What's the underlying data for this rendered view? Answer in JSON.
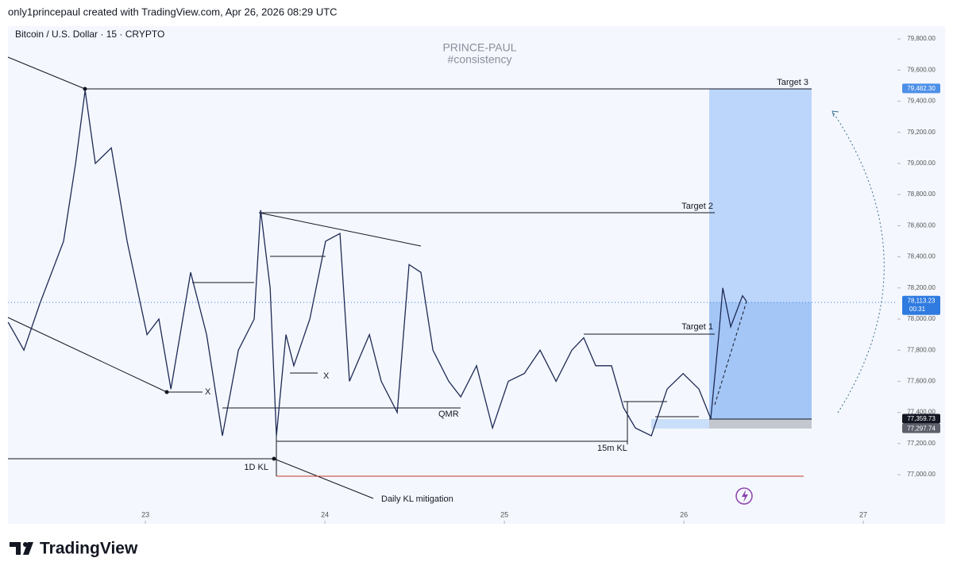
{
  "header": {
    "text": "only1princepaul created with TradingView.com, Apr 26, 2026 08:29 UTC"
  },
  "chart_data": {
    "type": "line",
    "title": "Bitcoin / U.S. Dollar · 15 · CRYPTO",
    "watermark": [
      "PRINCE-PAUL",
      "#consistency"
    ],
    "color": "#1e2a55",
    "x": [
      22.235,
      22.323,
      22.412,
      22.544,
      22.611,
      22.664,
      22.721,
      22.81,
      22.898,
      23.009,
      23.075,
      23.142,
      23.252,
      23.341,
      23.429,
      23.518,
      23.606,
      23.642,
      23.695,
      23.73,
      23.783,
      23.827,
      23.916,
      24.004,
      24.084,
      24.137,
      24.248,
      24.314,
      24.403,
      24.469,
      24.535,
      24.602,
      24.69,
      24.757,
      24.845,
      24.934,
      25.022,
      25.111,
      25.199,
      25.288,
      25.376,
      25.442,
      25.509,
      25.597,
      25.664,
      25.73,
      25.819,
      25.907,
      25.996,
      26.084,
      26.15,
      26.195,
      26.217,
      26.261,
      26.327,
      26.35
    ],
    "values": [
      77980,
      77800,
      78100,
      78500,
      79000,
      79470,
      79000,
      79100,
      78500,
      77900,
      78000,
      77550,
      78300,
      77900,
      77250,
      77800,
      78000,
      78700,
      78200,
      77250,
      77900,
      77700,
      78000,
      78500,
      78550,
      77600,
      77900,
      77600,
      77400,
      78350,
      78300,
      77800,
      77600,
      77500,
      77700,
      77300,
      77600,
      77650,
      77800,
      77600,
      77800,
      77880,
      77700,
      77700,
      77430,
      77300,
      77250,
      77550,
      77650,
      77550,
      77360,
      77900,
      78200,
      77950,
      78150,
      78113
    ],
    "xlim": [
      22.234,
      27.19
    ],
    "xticks": [
      23,
      24,
      25,
      26,
      27
    ],
    "ylim": [
      76684,
      79882
    ],
    "yticks": [
      {
        "value": 77000,
        "label": "77,000.00"
      },
      {
        "value": 77200,
        "label": "77,200.00"
      },
      {
        "value": 77400,
        "label": "77,400.00"
      },
      {
        "value": 77600,
        "label": "77,600.00"
      },
      {
        "value": 77800,
        "label": "77,800.00"
      },
      {
        "value": 78000,
        "label": "78,000.00"
      },
      {
        "value": 78200,
        "label": "78,200.00"
      },
      {
        "value": 78400,
        "label": "78,400.00"
      },
      {
        "value": 78600,
        "label": "78,600.00"
      },
      {
        "value": 78800,
        "label": "78,800.00"
      },
      {
        "value": 79000,
        "label": "79,000.00"
      },
      {
        "value": 79200,
        "label": "79,200.00"
      },
      {
        "value": 79400,
        "label": "79,400.00"
      },
      {
        "value": 79600,
        "label": "79,600.00"
      },
      {
        "value": 79800,
        "label": "79,800.00"
      }
    ],
    "price_tags": [
      {
        "value": 79482.3,
        "label": "79,482.30",
        "color": "#4c8fe8"
      },
      {
        "value": 78113.23,
        "label": "78,113.23",
        "color": "#2f7be0",
        "countdown": "00:31"
      },
      {
        "value": 77359.73,
        "label": "77,359.73",
        "color": "#131722"
      },
      {
        "value": 77297.74,
        "label": "77,297.74",
        "color": "#5d606b"
      }
    ],
    "annotations": [
      "Target 3",
      "Target 2",
      "Target 1",
      "QMR",
      "15m KL",
      "1D KL",
      "Daily KL mitigation",
      "X",
      "X"
    ]
  },
  "footer": {
    "logo": "TradingView"
  }
}
